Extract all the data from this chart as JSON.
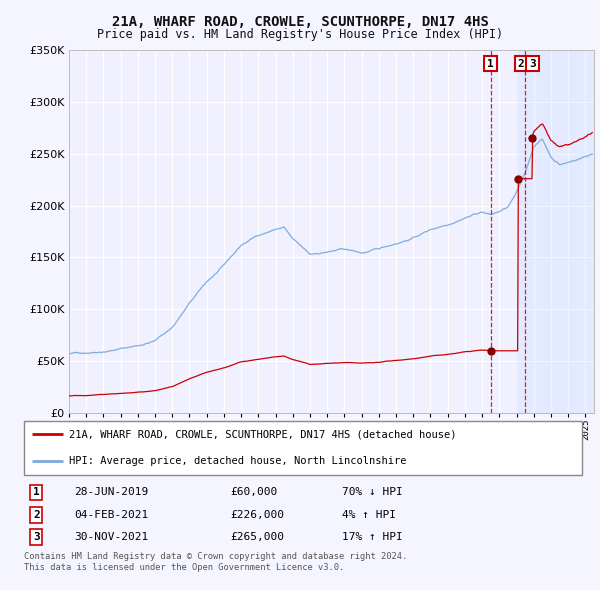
{
  "title1": "21A, WHARF ROAD, CROWLE, SCUNTHORPE, DN17 4HS",
  "title2": "Price paid vs. HM Land Registry's House Price Index (HPI)",
  "background_color": "#f5f5ff",
  "plot_bg_color": "#f0f0ff",
  "grid_color": "#ffffff",
  "hpi_line_color": "#7aaadd",
  "price_line_color": "#cc0000",
  "marker_color": "#880000",
  "transactions": [
    {
      "date": 2019.49,
      "price": 60000,
      "label": "1"
    },
    {
      "date": 2021.09,
      "price": 226000,
      "label": "2"
    },
    {
      "date": 2021.92,
      "price": 265000,
      "label": "3"
    }
  ],
  "legend_property": "21A, WHARF ROAD, CROWLE, SCUNTHORPE, DN17 4HS (detached house)",
  "legend_hpi": "HPI: Average price, detached house, North Lincolnshire",
  "table_rows": [
    {
      "num": "1",
      "date": "28-JUN-2019",
      "price": "£60,000",
      "hpi": "70% ↓ HPI"
    },
    {
      "num": "2",
      "date": "04-FEB-2021",
      "price": "£226,000",
      "hpi": "4% ↑ HPI"
    },
    {
      "num": "3",
      "date": "30-NOV-2021",
      "price": "£265,000",
      "hpi": "17% ↑ HPI"
    }
  ],
  "footnote1": "Contains HM Land Registry data © Crown copyright and database right 2024.",
  "footnote2": "This data is licensed under the Open Government Licence v3.0.",
  "xmin": 1995.0,
  "xmax": 2025.5,
  "ymin": 0,
  "ymax": 350000,
  "vline1_x": 2019.49,
  "vline2_x": 2021.5,
  "shaded_start": 2021.0
}
